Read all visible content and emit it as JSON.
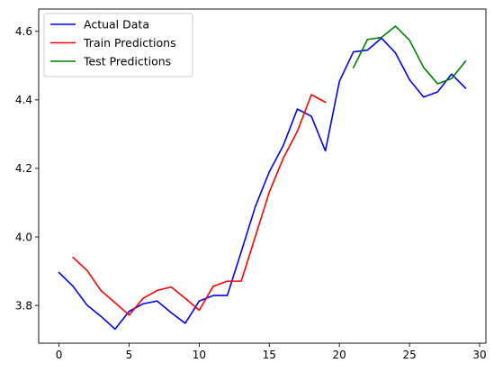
{
  "chart_data": {
    "type": "line",
    "title": "",
    "xlabel": "",
    "ylabel": "",
    "xlim": [
      -1.45,
      30.45
    ],
    "ylim": [
      3.69,
      4.665
    ],
    "xticks": [
      0,
      5,
      10,
      15,
      20,
      25,
      30
    ],
    "xtick_labels": [
      "0",
      "5",
      "10",
      "15",
      "20",
      "25",
      "30"
    ],
    "yticks": [
      3.8,
      4.0,
      4.2,
      4.4,
      4.6
    ],
    "ytick_labels": [
      "3.8",
      "4.0",
      "4.2",
      "4.4",
      "4.6"
    ],
    "grid": false,
    "legend_position": "upper-left",
    "series": [
      {
        "name": "Actual Data",
        "color": "#0000ff",
        "x": [
          0,
          1,
          2,
          3,
          4,
          5,
          6,
          7,
          8,
          9,
          10,
          11,
          12,
          13,
          14,
          15,
          16,
          17,
          18,
          19,
          20,
          21,
          22,
          23,
          24,
          25,
          26,
          27,
          28,
          29
        ],
        "y": [
          3.896,
          3.856,
          3.801,
          3.768,
          3.731,
          3.783,
          3.805,
          3.813,
          3.779,
          3.748,
          3.813,
          3.829,
          3.829,
          3.957,
          4.088,
          4.19,
          4.267,
          4.373,
          4.352,
          4.251,
          4.454,
          4.54,
          4.545,
          4.58,
          4.537,
          4.459,
          4.408,
          4.423,
          4.475,
          4.434
        ]
      },
      {
        "name": "Train Predictions",
        "color": "#ff0000",
        "x": [
          1,
          2,
          3,
          4,
          5,
          6,
          7,
          8,
          9,
          10,
          11,
          12,
          13,
          14,
          15,
          16,
          17,
          18,
          19
        ],
        "y": [
          3.94,
          3.902,
          3.843,
          3.808,
          3.772,
          3.821,
          3.844,
          3.854,
          3.821,
          3.786,
          3.856,
          3.871,
          3.871,
          4.001,
          4.131,
          4.23,
          4.308,
          4.415,
          4.393
        ]
      },
      {
        "name": "Test Predictions",
        "color": "#008000",
        "x": [
          21,
          22,
          23,
          24,
          25,
          26,
          27,
          28,
          29
        ],
        "y": [
          4.494,
          4.576,
          4.582,
          4.615,
          4.574,
          4.495,
          4.447,
          4.462,
          4.513
        ]
      }
    ]
  }
}
